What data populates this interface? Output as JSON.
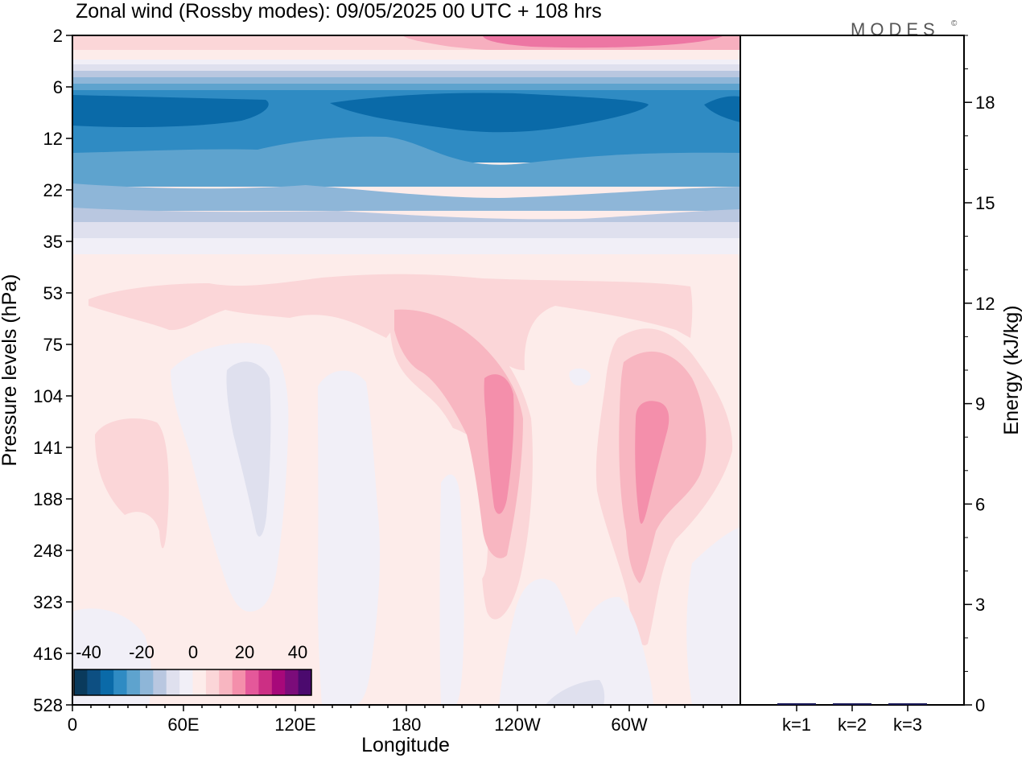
{
  "title": "Zonal wind (Rossby modes):  09/05/2025  00 UTC  + 108 hrs",
  "logo": {
    "text": "MODES",
    "mark": "©"
  },
  "colors": {
    "scale": [
      "#0a3a5c",
      "#0d4f82",
      "#0a6aa8",
      "#2f8bc3",
      "#5ea3ce",
      "#8eb6d8",
      "#b9c7e0",
      "#dfe0ee",
      "#f1eff7",
      "#fdecea",
      "#fbd6d8",
      "#f8b6c1",
      "#f48fab",
      "#e4589a",
      "#cc2f84",
      "#a7087a",
      "#7b0c7a",
      "#4b0a6e"
    ],
    "frame": "#000000"
  },
  "chart_data": [
    {
      "type": "heatmap",
      "title": "Zonal wind (Rossby modes):  09/05/2025  00 UTC  + 108 hrs",
      "xlabel": "Longitude",
      "ylabel": "Pressure levels (hPa)",
      "x_ticks": [
        "0",
        "60E",
        "120E",
        "180",
        "120W",
        "60W"
      ],
      "x_tick_degrees": [
        0,
        60,
        120,
        180,
        240,
        300
      ],
      "xlim": [
        0,
        360
      ],
      "y_ticks": [
        "2",
        "6",
        "12",
        "22",
        "35",
        "53",
        "75",
        "104",
        "141",
        "188",
        "248",
        "323",
        "416",
        "528"
      ],
      "colorbar": {
        "ticks": [
          "-40",
          "-20",
          "0",
          "20",
          "40"
        ],
        "range": [
          -45,
          45
        ]
      },
      "features": [
        {
          "region": "upper stratosphere",
          "levels": "2",
          "lon": [
            0,
            360
          ],
          "value": 12
        },
        {
          "region": "easterly belt",
          "levels": "6-12",
          "lon": [
            0,
            360
          ],
          "value": -40
        },
        {
          "region": "easterly belt lower",
          "levels": "12-35",
          "lon": [
            0,
            360
          ],
          "value": -20
        },
        {
          "region": "tropospheric jet",
          "lon": 230,
          "levels": "104-188",
          "value": 22
        },
        {
          "region": "tropospheric jet",
          "lon": 310,
          "levels": "104-188",
          "value": 22
        },
        {
          "region": "westerly region",
          "lon": 40,
          "levels": "141-188",
          "value": 6
        },
        {
          "region": "weak easterly",
          "lon": 100,
          "levels": "104-188",
          "value": -4
        }
      ]
    },
    {
      "type": "bar",
      "categories": [
        "k=1",
        "k=2",
        "k=3"
      ],
      "values": [
        0.05,
        0.03,
        0.02
      ],
      "ylabel": "Energy (kJ/kg)",
      "y_ticks": [
        0,
        3,
        6,
        9,
        12,
        15,
        18
      ],
      "ylim": [
        0,
        20
      ]
    }
  ]
}
